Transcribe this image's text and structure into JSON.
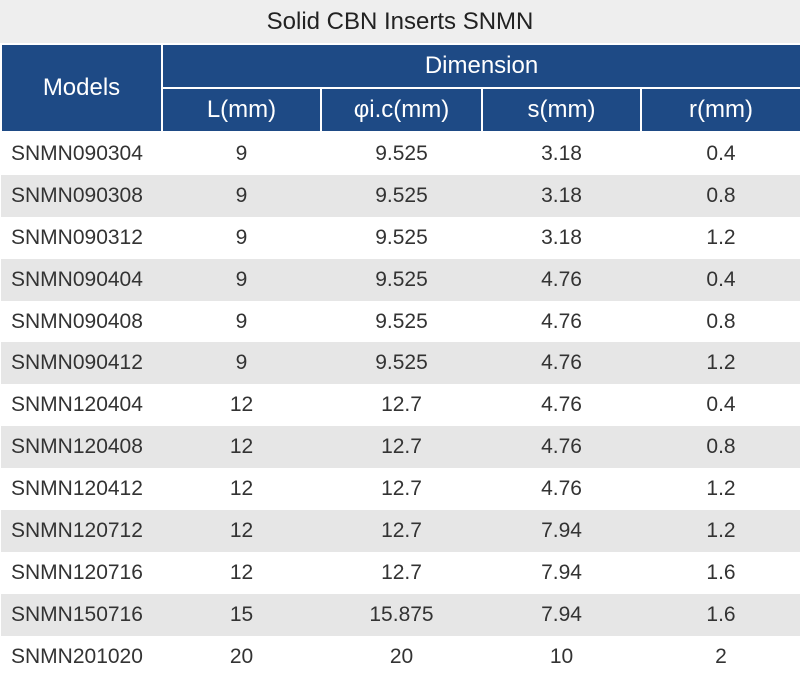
{
  "title": "Solid CBN Inserts SNMN",
  "header": {
    "models": "Models",
    "dimension": "Dimension",
    "columns": [
      "L(mm)",
      "φi.c(mm)",
      "s(mm)",
      "r(mm)"
    ]
  },
  "rows": [
    {
      "model": "SNMN090304",
      "L": "9",
      "ic": "9.525",
      "s": "3.18",
      "r": "0.4"
    },
    {
      "model": "SNMN090308",
      "L": "9",
      "ic": "9.525",
      "s": "3.18",
      "r": "0.8"
    },
    {
      "model": "SNMN090312",
      "L": "9",
      "ic": "9.525",
      "s": "3.18",
      "r": "1.2"
    },
    {
      "model": "SNMN090404",
      "L": "9",
      "ic": "9.525",
      "s": "4.76",
      "r": "0.4"
    },
    {
      "model": "SNMN090408",
      "L": "9",
      "ic": "9.525",
      "s": "4.76",
      "r": "0.8"
    },
    {
      "model": "SNMN090412",
      "L": "9",
      "ic": "9.525",
      "s": "4.76",
      "r": "1.2"
    },
    {
      "model": "SNMN120404",
      "L": "12",
      "ic": "12.7",
      "s": "4.76",
      "r": "0.4"
    },
    {
      "model": "SNMN120408",
      "L": "12",
      "ic": "12.7",
      "s": "4.76",
      "r": "0.8"
    },
    {
      "model": "SNMN120412",
      "L": "12",
      "ic": "12.7",
      "s": "4.76",
      "r": "1.2"
    },
    {
      "model": "SNMN120712",
      "L": "12",
      "ic": "12.7",
      "s": "7.94",
      "r": "1.2"
    },
    {
      "model": "SNMN120716",
      "L": "12",
      "ic": "12.7",
      "s": "7.94",
      "r": "1.6"
    },
    {
      "model": "SNMN150716",
      "L": "15",
      "ic": "15.875",
      "s": "7.94",
      "r": "1.6"
    },
    {
      "model": "SNMN201020",
      "L": "20",
      "ic": "20",
      "s": "10",
      "r": "2"
    }
  ],
  "colors": {
    "header_bg": "#1e4a85",
    "stripe_bg": "#e6e6e6",
    "title_bg": "#eeeeee"
  }
}
